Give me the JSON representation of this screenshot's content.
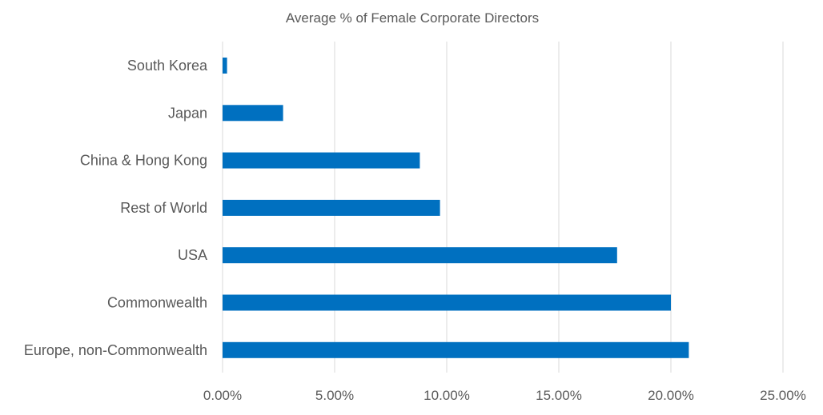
{
  "chart_data": {
    "type": "bar",
    "orientation": "horizontal",
    "title": "Average % of Female Corporate Directors",
    "xlabel": "",
    "ylabel": "",
    "categories": [
      "South Korea",
      "Japan",
      "China & Hong Kong",
      "Rest of World",
      "USA",
      "Commonwealth",
      "Europe, non-Commonwealth"
    ],
    "values": [
      0.2,
      2.7,
      8.8,
      9.7,
      17.6,
      20.0,
      20.8
    ],
    "xlim": [
      0,
      25
    ],
    "xticks": [
      0,
      5,
      10,
      15,
      20,
      25
    ],
    "xtick_labels": [
      "0.00%",
      "5.00%",
      "10.00%",
      "15.00%",
      "20.00%",
      "25.00%"
    ],
    "grid": "vertical",
    "legend": "none",
    "colors": {
      "bar": "#0070C0",
      "grid": "#D9D9D9",
      "text": "#595959"
    }
  }
}
